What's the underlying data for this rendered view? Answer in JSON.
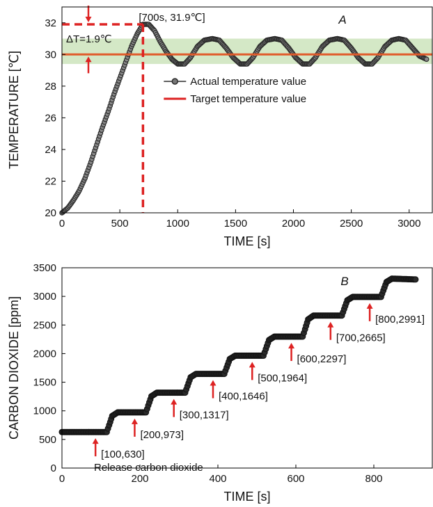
{
  "chart_data": [
    {
      "panel_label": "A",
      "type": "line",
      "xlabel": "TIME [s]",
      "ylabel": "TEMPERATURE [℃]",
      "xlim": [
        0,
        3200
      ],
      "ylim": [
        20,
        33
      ],
      "x_ticks": [
        "0",
        "500",
        "1000",
        "1500",
        "2000",
        "2500",
        "3000"
      ],
      "y_ticks": [
        "20",
        "22",
        "24",
        "26",
        "28",
        "30",
        "32"
      ],
      "legend_position": "center-right",
      "target_band": [
        29.4,
        31.0
      ],
      "peak_point": {
        "x": 700,
        "y": 31.9
      },
      "peak_label": "[700s, 31.9℃]",
      "delta_label": "ΔT=1.9℃",
      "series": [
        {
          "name": "Actual temperature value",
          "color": "#2b2b2b",
          "marker": "circle",
          "points": [
            [
              0,
              20.0
            ],
            [
              50,
              20.3
            ],
            [
              100,
              20.8
            ],
            [
              150,
              21.4
            ],
            [
              200,
              22.2
            ],
            [
              250,
              23.2
            ],
            [
              300,
              24.3
            ],
            [
              350,
              25.4
            ],
            [
              400,
              26.4
            ],
            [
              450,
              27.5
            ],
            [
              500,
              28.5
            ],
            [
              550,
              29.5
            ],
            [
              600,
              30.5
            ],
            [
              650,
              31.3
            ],
            [
              700,
              31.9
            ],
            [
              750,
              31.9
            ],
            [
              800,
              31.5
            ],
            [
              850,
              30.8
            ],
            [
              900,
              30.2
            ],
            [
              950,
              29.7
            ],
            [
              1000,
              29.4
            ],
            [
              1060,
              29.4
            ],
            [
              1110,
              29.8
            ],
            [
              1170,
              30.5
            ],
            [
              1230,
              30.9
            ],
            [
              1300,
              31.0
            ],
            [
              1360,
              30.9
            ],
            [
              1420,
              30.4
            ],
            [
              1480,
              29.8
            ],
            [
              1540,
              29.4
            ],
            [
              1600,
              29.4
            ],
            [
              1650,
              29.8
            ],
            [
              1710,
              30.5
            ],
            [
              1770,
              30.9
            ],
            [
              1840,
              31.0
            ],
            [
              1900,
              30.9
            ],
            [
              1960,
              30.4
            ],
            [
              2020,
              29.8
            ],
            [
              2080,
              29.4
            ],
            [
              2140,
              29.4
            ],
            [
              2190,
              29.8
            ],
            [
              2250,
              30.5
            ],
            [
              2310,
              30.9
            ],
            [
              2380,
              31.0
            ],
            [
              2440,
              30.9
            ],
            [
              2500,
              30.4
            ],
            [
              2560,
              29.8
            ],
            [
              2620,
              29.4
            ],
            [
              2680,
              29.4
            ],
            [
              2730,
              29.8
            ],
            [
              2790,
              30.5
            ],
            [
              2850,
              30.9
            ],
            [
              2910,
              31.0
            ],
            [
              2970,
              30.9
            ],
            [
              3030,
              30.4
            ],
            [
              3090,
              29.9
            ],
            [
              3150,
              29.7
            ]
          ]
        },
        {
          "name": "Target temperature value",
          "color": "#e05a2a",
          "value": 30.0
        }
      ]
    },
    {
      "panel_label": "B",
      "type": "line",
      "xlabel": "TIME [s]",
      "ylabel": "CARBON DIOXIDE [ppm]",
      "xlim": [
        0,
        950
      ],
      "ylim": [
        0,
        3500
      ],
      "x_ticks": [
        "0",
        "200",
        "400",
        "600",
        "800"
      ],
      "y_ticks": [
        "0",
        "500",
        "1000",
        "1500",
        "2000",
        "2500",
        "3000",
        "3500"
      ],
      "annotation": "Release carbon dioxide",
      "steps": [
        {
          "label": "[100,630]",
          "x": 100,
          "y": 630
        },
        {
          "label": "[200,973]",
          "x": 200,
          "y": 973
        },
        {
          "label": "[300,1317]",
          "x": 300,
          "y": 1317
        },
        {
          "label": "[400,1646]",
          "x": 400,
          "y": 1646
        },
        {
          "label": "[500,1964]",
          "x": 500,
          "y": 1964
        },
        {
          "label": "[600,2297]",
          "x": 600,
          "y": 2297
        },
        {
          "label": "[700,2665]",
          "x": 700,
          "y": 2665
        },
        {
          "label": "[800,2991]",
          "x": 800,
          "y": 2991
        }
      ],
      "final_value": 3310,
      "series_color": "#1a1a1a"
    }
  ],
  "colors": {
    "marker_dark": "#2b2b2b",
    "target_line": "#e05a2a",
    "band": "#cfe6c0",
    "annotation_red": "#dd2222"
  }
}
